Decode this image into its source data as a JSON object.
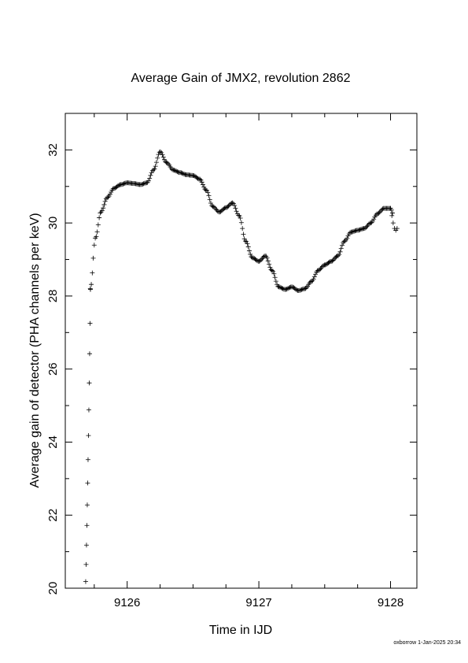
{
  "chart_data": {
    "type": "scatter",
    "title": "Average Gain of JMX2, revolution 2862",
    "xlabel": "Time in IJD",
    "ylabel": "Average gain of detector (PHA channels per keV)",
    "xlim": [
      9125.53,
      9128.2
    ],
    "ylim": [
      20,
      33
    ],
    "xticks": [
      9126,
      9127,
      9128
    ],
    "yticks": [
      20,
      22,
      24,
      26,
      28,
      30,
      32
    ],
    "marker": "+",
    "grid": false,
    "footer": "oxborrow  1-Jan-2025 20:34",
    "sparse_points": {
      "x": [
        9125.685,
        9125.688,
        9125.691,
        9125.694,
        9125.697,
        9125.7,
        9125.703,
        9125.706,
        9125.709,
        9125.712,
        9125.715,
        9125.718,
        9125.721
      ],
      "y": [
        20.18,
        20.65,
        21.18,
        21.72,
        22.28,
        22.88,
        23.52,
        24.18,
        24.88,
        25.62,
        26.42,
        27.25,
        28.18
      ]
    },
    "curve_knots": {
      "x": [
        9125.72,
        9125.76,
        9125.8,
        9125.85,
        9125.9,
        9125.95,
        9126.0,
        9126.05,
        9126.1,
        9126.15,
        9126.2,
        9126.25,
        9126.3,
        9126.35,
        9126.4,
        9126.45,
        9126.5,
        9126.55,
        9126.6,
        9126.65,
        9126.7,
        9126.75,
        9126.8,
        9126.85,
        9126.9,
        9126.95,
        9127.0,
        9127.05,
        9127.1,
        9127.15,
        9127.2,
        9127.25,
        9127.3,
        9127.35,
        9127.4,
        9127.45,
        9127.5,
        9127.55,
        9127.6,
        9127.65,
        9127.7,
        9127.75,
        9127.8,
        9127.85,
        9127.9,
        9127.95,
        9128.0,
        9128.02
      ],
      "y": [
        28.2,
        29.6,
        30.3,
        30.7,
        30.95,
        31.05,
        31.1,
        31.08,
        31.05,
        31.1,
        31.45,
        31.95,
        31.65,
        31.45,
        31.38,
        31.32,
        31.3,
        31.2,
        30.9,
        30.45,
        30.3,
        30.42,
        30.55,
        30.2,
        29.5,
        29.05,
        28.95,
        29.1,
        28.7,
        28.25,
        28.18,
        28.25,
        28.15,
        28.2,
        28.4,
        28.7,
        28.85,
        28.95,
        29.1,
        29.5,
        29.75,
        29.8,
        29.85,
        30.0,
        30.25,
        30.4,
        30.4,
        30.25
      ]
    },
    "tail_points": {
      "x": [
        9128.0,
        9128.01,
        9128.02,
        9128.03,
        9128.04,
        9128.05
      ],
      "y": [
        30.4,
        30.2,
        30.0,
        29.85,
        29.8,
        29.85
      ]
    }
  }
}
